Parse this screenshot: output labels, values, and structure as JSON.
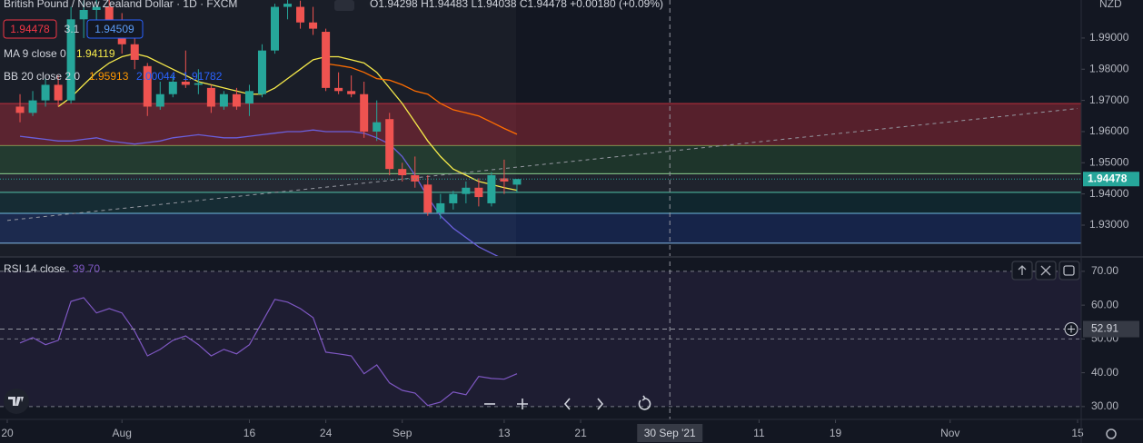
{
  "chart_data": [
    {
      "type": "candlestick",
      "title": "British Pound / New Zealand Dollar · 1D · FXCM",
      "ohlc_legend": [
        "O1.94298",
        "H1.94483",
        "L1.94038",
        "C1.94478",
        "+0.00180 (+0.09%)"
      ],
      "bid": 1.94478,
      "spread": 3.1,
      "ask": 1.94509,
      "x": [
        "2021-07-21",
        "2021-07-22",
        "2021-07-23",
        "2021-07-26",
        "2021-07-27",
        "2021-07-28",
        "2021-07-29",
        "2021-07-30",
        "2021-08-02",
        "2021-08-03",
        "2021-08-04",
        "2021-08-05",
        "2021-08-06",
        "2021-08-09",
        "2021-08-10",
        "2021-08-11",
        "2021-08-12",
        "2021-08-13",
        "2021-08-16",
        "2021-08-17",
        "2021-08-18",
        "2021-08-19",
        "2021-08-20",
        "2021-08-23",
        "2021-08-24",
        "2021-08-25",
        "2021-08-26",
        "2021-08-27",
        "2021-08-30",
        "2021-08-31",
        "2021-09-01",
        "2021-09-02",
        "2021-09-03",
        "2021-09-06",
        "2021-09-07",
        "2021-09-08",
        "2021-09-09",
        "2021-09-10",
        "2021-09-13",
        "2021-09-14"
      ],
      "open": [
        1.968,
        1.966,
        1.97,
        1.975,
        1.97,
        1.996,
        1.999,
        2.0,
        1.995,
        1.988,
        1.981,
        1.968,
        1.972,
        1.976,
        1.975,
        1.974,
        1.968,
        1.972,
        1.969,
        1.972,
        1.986,
        2.0,
        2.0,
        1.995,
        1.992,
        1.974,
        1.973,
        1.972,
        1.96,
        1.964,
        1.948,
        1.946,
        1.943,
        1.934,
        1.937,
        1.94,
        1.942,
        1.937,
        1.945,
        1.94298
      ],
      "high": [
        1.972,
        1.973,
        1.977,
        1.978,
        2.0,
        2.002,
        2.003,
        2.004,
        1.998,
        1.993,
        1.982,
        1.976,
        1.978,
        1.986,
        1.98,
        1.975,
        1.973,
        1.974,
        1.975,
        1.988,
        2.001,
        2.003,
        2.002,
        2.0,
        1.993,
        1.979,
        1.978,
        1.976,
        1.97,
        1.966,
        1.95,
        1.952,
        1.946,
        1.94,
        1.941,
        1.944,
        1.945,
        1.947,
        1.951,
        1.94483
      ],
      "low": [
        1.963,
        1.965,
        1.968,
        1.968,
        1.969,
        1.99,
        1.995,
        1.993,
        1.985,
        1.98,
        1.965,
        1.967,
        1.971,
        1.974,
        1.972,
        1.966,
        1.967,
        1.967,
        1.965,
        1.971,
        1.985,
        1.996,
        1.993,
        1.991,
        1.973,
        1.972,
        1.971,
        1.958,
        1.957,
        1.946,
        1.944,
        1.942,
        1.933,
        1.932,
        1.935,
        1.937,
        1.936,
        1.936,
        1.94,
        1.94038
      ],
      "close": [
        1.966,
        1.97,
        1.975,
        1.97,
        1.996,
        1.999,
        2.0,
        1.995,
        1.988,
        1.983,
        1.968,
        1.972,
        1.976,
        1.975,
        1.9755,
        1.968,
        1.972,
        1.968,
        1.973,
        1.986,
        2.0,
        2.001,
        1.995,
        1.993,
        1.974,
        1.973,
        1.972,
        1.96,
        1.963,
        1.948,
        1.946,
        1.944,
        1.934,
        1.937,
        1.94,
        1.942,
        1.939,
        1.946,
        1.944,
        1.94478
      ],
      "up_color": "#26a69a",
      "down_color": "#ef5350",
      "xlim": [
        "2021-07-20",
        "2021-11-15"
      ],
      "xticks": [
        {
          "value": "2021-07-20",
          "label": "20"
        },
        {
          "value": "2021-08-02",
          "label": "Aug"
        },
        {
          "value": "2021-08-16",
          "label": "16"
        },
        {
          "value": "2021-08-24",
          "label": "24"
        },
        {
          "value": "2021-09-01",
          "label": "Sep"
        },
        {
          "value": "2021-09-13",
          "label": "13"
        },
        {
          "value": "2021-09-21",
          "label": "21"
        },
        {
          "value": "2021-10-11",
          "label": "11"
        },
        {
          "value": "2021-10-19",
          "label": "19"
        },
        {
          "value": "2021-11-01",
          "label": "Nov"
        },
        {
          "value": "2021-11-15",
          "label": "15"
        }
      ],
      "ylim": [
        1.9201,
        2.0022
      ],
      "yticks": [
        {
          "value": 1.93,
          "label": "1.93000"
        },
        {
          "value": 1.94,
          "label": "1.94000"
        },
        {
          "value": 1.95,
          "label": "1.95000"
        },
        {
          "value": 1.96,
          "label": "1.96000"
        },
        {
          "value": 1.97,
          "label": "1.97000"
        },
        {
          "value": 1.98,
          "label": "1.98000"
        },
        {
          "value": 1.99,
          "label": "1.99000"
        }
      ],
      "currency": "NZD",
      "last_price": 1.94478,
      "crosshair": {
        "value": "2021-09-30",
        "label": "30 Sep '21"
      },
      "indicators": [
        {
          "name": "MA 9 close 0",
          "legend_values": [
            1.94119
          ],
          "colors": [
            "#f5e94a"
          ],
          "series": [
            {
              "color": "#f5e94a",
              "values": [
                null,
                null,
                null,
                1.968,
                1.971,
                1.975,
                1.979,
                1.982,
                1.984,
                1.985,
                1.984,
                1.982,
                1.98,
                1.978,
                1.976,
                1.975,
                1.974,
                1.973,
                1.972,
                1.972,
                1.974,
                1.977,
                1.98,
                1.983,
                1.984,
                1.984,
                1.983,
                1.982,
                1.979,
                1.974,
                1.969,
                1.963,
                1.957,
                1.952,
                1.948,
                1.946,
                1.944,
                1.943,
                1.942,
                1.94119
              ]
            }
          ]
        },
        {
          "name": "BB 20 close 2 0",
          "legend_values": [
            1.95913,
            2.00044,
            1.91782
          ],
          "colors": [
            "#ff9800",
            "#2962ff",
            "#2962ff"
          ],
          "series": [
            {
              "color": "#ff6d00",
              "values": [
                null,
                null,
                null,
                null,
                null,
                null,
                null,
                null,
                null,
                null,
                null,
                null,
                null,
                null,
                null,
                null,
                null,
                null,
                null,
                null,
                null,
                null,
                null,
                null,
                1.9818,
                1.9812,
                1.9805,
                1.979,
                1.977,
                1.9765,
                1.975,
                1.973,
                1.972,
                1.969,
                1.967,
                1.966,
                1.965,
                1.963,
                1.961,
                1.95913
              ]
            },
            {
              "color": "#6a5fdb",
              "values": [
                1.9585,
                1.958,
                1.9575,
                1.957,
                1.957,
                1.9575,
                1.958,
                1.957,
                1.9565,
                1.956,
                1.9565,
                1.957,
                1.958,
                1.9585,
                1.959,
                1.9585,
                1.958,
                1.958,
                1.9585,
                1.959,
                1.9595,
                1.96,
                1.96,
                1.9605,
                1.96,
                1.96,
                1.96,
                1.9595,
                1.958,
                1.956,
                1.952,
                1.946,
                1.939,
                1.933,
                1.929,
                1.926,
                1.923,
                1.921,
                1.919,
                1.91782
              ]
            }
          ]
        }
      ],
      "zones": [
        {
          "from": 1.9555,
          "to": 1.969,
          "color": "rgba(242,54,69,0.30)",
          "line_color": "#f23645"
        },
        {
          "from": 1.9465,
          "to": 1.9555,
          "color": "rgba(76,175,80,0.20)",
          "line_color": "#4caf50"
        },
        {
          "from": 1.9405,
          "to": 1.9465,
          "color": "rgba(120,123,134,0.12)",
          "line_color": "#a5d6a7"
        },
        {
          "from": 1.9338,
          "to": 1.9405,
          "color": "rgba(0,150,136,0.12)",
          "line_color": "#26a69a"
        },
        {
          "from": 1.9242,
          "to": 1.9338,
          "color": "rgba(41,98,255,0.18)",
          "line_color": "#90caf9"
        }
      ],
      "trendline": {
        "x": [
          "2021-07-20",
          "2021-11-15"
        ],
        "y": [
          1.9315,
          1.9674
        ]
      }
    },
    {
      "type": "line",
      "name": "RSI 14 close",
      "legend_value": {
        "value": 39.7,
        "label": "39.70"
      },
      "color": "#7e57c2",
      "values": [
        48.8,
        50.4,
        48.3,
        49.6,
        61.1,
        62.2,
        57.7,
        59.0,
        57.7,
        52.3,
        45.0,
        46.9,
        49.6,
        50.9,
        48.3,
        45.0,
        46.9,
        45.6,
        48.3,
        55.0,
        61.7,
        60.9,
        59.0,
        56.3,
        46.1,
        45.6,
        45.0,
        39.7,
        42.3,
        37.0,
        34.8,
        34.0,
        30.3,
        31.3,
        34.3,
        33.5,
        38.9,
        38.3,
        38.1,
        39.7
      ],
      "ylim": [
        26.2,
        74.0
      ],
      "yticks": [
        {
          "value": 30,
          "label": "30.00"
        },
        {
          "value": 40,
          "label": "40.00"
        },
        {
          "value": 50,
          "label": "50.00"
        },
        {
          "value": 60,
          "label": "60.00"
        },
        {
          "value": 70,
          "label": "70.00"
        }
      ],
      "levels": [
        70,
        50,
        30
      ],
      "crosshair": 52.91
    }
  ]
}
